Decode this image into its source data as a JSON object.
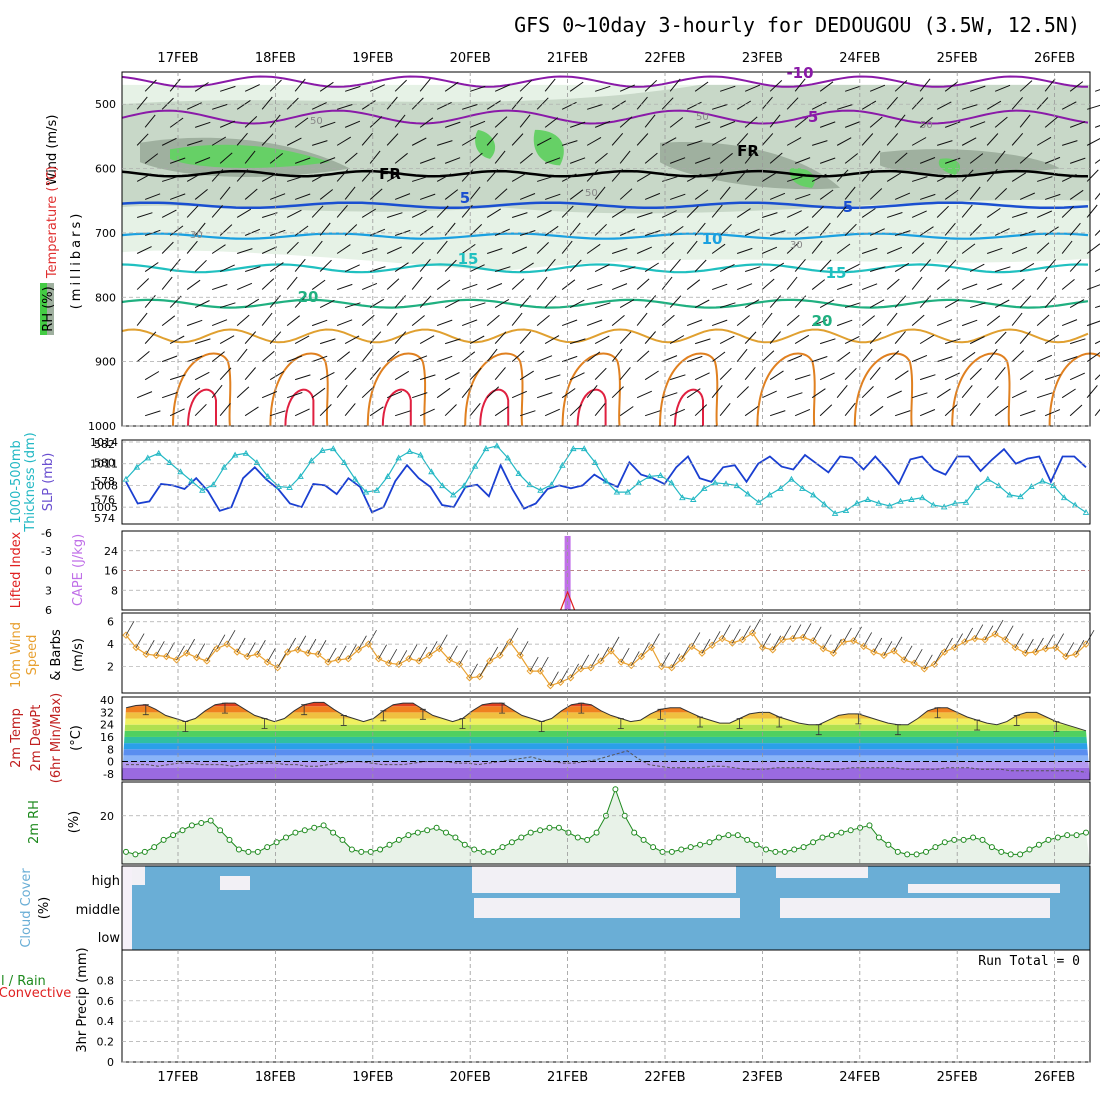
{
  "title": "GFS 0~10day 3-hourly for DEDOUGOU (3.5W, 12.5N)",
  "dates": [
    "17FEB",
    "18FEB",
    "19FEB",
    "20FEB",
    "21FEB",
    "22FEB",
    "23FEB",
    "24FEB",
    "25FEB",
    "26FEB"
  ],
  "panel_labels": {
    "p1": [
      "Wind (m/s)",
      "Temperature (°C)",
      "RH (%)",
      "(millibars)"
    ],
    "p2": [
      "1000-500mb",
      "Thickness (dm)",
      "SLP (mb)"
    ],
    "p3": [
      "Lifted Index",
      "CAPE (J/kg)"
    ],
    "p4": [
      "10m Wind",
      "Speed",
      "& Barbs",
      "(m/s)"
    ],
    "p5": [
      "2m Temp",
      "2m DewPt",
      "(6hr Min/Max)",
      "(°C)"
    ],
    "p6": [
      "2m RH",
      "(%)"
    ],
    "p7": [
      "Cloud Cover",
      "(%)"
    ],
    "p8": [
      "Total / Rain",
      "Convective",
      "3hr Precip (mm)"
    ]
  },
  "colors": {
    "slp": "#1a3fd1",
    "thickness": "#23b8c4",
    "cape": "#c070e8",
    "lifted": "#e02020",
    "wind10": "#e8a030",
    "rh2m": "#1e8a1e",
    "cloud": "#6aaed6",
    "rhfill1": "#e6f2e6",
    "rhfill2": "#c8d8c8",
    "rhfill3": "#9fb09f",
    "rhfill4": "#66d066"
  },
  "run_total": "Run Total = 0",
  "cloud_levels": [
    "high",
    "middle",
    "low"
  ],
  "chart_data": [
    {
      "type": "contour",
      "name": "upper-air",
      "ylabel": "millibars",
      "yticks": [
        500,
        600,
        700,
        800,
        900,
        1000
      ],
      "ylim": [
        1000,
        450
      ],
      "isotherm_labels": [
        "-10",
        "-5",
        "FR",
        "FR",
        "5",
        "5",
        "10",
        "15",
        "15",
        "20",
        "20"
      ],
      "rh_labels": [
        "50",
        "50",
        "50",
        "50",
        "30",
        "30"
      ]
    },
    {
      "type": "line",
      "name": "slp-thickness",
      "y_left_ticks": [
        574,
        576,
        578,
        580,
        582
      ],
      "y_right_ticks": [
        1005,
        1008,
        1011,
        1014
      ],
      "series": [
        {
          "name": "SLP (mb)",
          "axis": "right",
          "values": [
            1008.5,
            1005.5,
            1005.8,
            1008.2,
            1008.0,
            1007.5,
            1009.0,
            1007.2,
            1004.5,
            1005.0,
            1009.0,
            1010.5,
            1008.8,
            1007.5,
            1005.5,
            1005.0,
            1008.2,
            1008.0,
            1006.8,
            1009.0,
            1007.8,
            1004.3,
            1005.0,
            1008.6,
            1010.8,
            1009.0,
            1007.8,
            1005.3,
            1005.0,
            1007.8,
            1008.1,
            1006.5,
            1010.8,
            1007.5,
            1004.8,
            1005.5,
            1007.5,
            1008.0,
            1007.6,
            1008.0,
            1009.5,
            1008.5,
            1007.8,
            1011.2,
            1009.5,
            1009.0,
            1008.2,
            1010.5,
            1012.0,
            1009.0,
            1008.5,
            1010.5,
            1010.8,
            1008.5,
            1011.0,
            1012.0,
            1010.6,
            1010.2,
            1012.2,
            1011.0,
            1009.8,
            1012.0,
            1011.8,
            1010.2,
            1012.0,
            1010.2,
            1008.2,
            1011.6,
            1012.0,
            1010.2,
            1009.5,
            1012.0,
            1012.0,
            1010.0,
            1011.6,
            1013.0,
            1011.0,
            1011.7,
            1012.0,
            1008.5,
            1012.0,
            1012.0,
            1010.5
          ]
        },
        {
          "name": "1000-500mb Thickness (dm)",
          "axis": "left",
          "values": [
            578.2,
            579.5,
            580.5,
            581.0,
            580.0,
            579.0,
            578.0,
            577.0,
            577.6,
            579.5,
            580.8,
            581.0,
            580.0,
            578.5,
            577.4,
            577.3,
            578.5,
            580.2,
            581.3,
            581.5,
            580.0,
            578.2,
            576.8,
            577.0,
            578.5,
            580.5,
            581.2,
            580.8,
            579.0,
            577.5,
            576.5,
            577.5,
            579.6,
            581.5,
            581.8,
            580.5,
            578.8,
            577.6,
            577.0,
            577.6,
            579.7,
            581.5,
            581.5,
            580.0,
            578.0,
            576.8,
            576.8,
            577.8,
            578.5,
            578.6,
            577.8,
            576.2,
            576.0,
            577.2,
            577.8,
            577.7,
            577.5,
            576.6,
            575.7,
            576.5,
            577.2,
            578.2,
            577.2,
            576.5,
            575.5,
            574.5,
            574.8,
            575.6,
            576.0,
            575.6,
            575.3,
            575.8,
            576.0,
            576.2,
            575.4,
            575.2,
            575.6,
            575.7,
            577.3,
            578.2,
            577.5,
            576.5,
            576.3,
            577.4,
            578.0,
            577.5,
            576.2,
            575.4,
            574.6
          ]
        }
      ]
    },
    {
      "type": "bar",
      "name": "cape-lifted",
      "y_left_ticks": [
        "-3",
        "0",
        "3",
        "6"
      ],
      "y_right_ticks": [
        "8",
        "16",
        "24"
      ],
      "cape_spikes": [
        {
          "date": "21FEB",
          "value": 30
        }
      ],
      "dashed_line": 0
    },
    {
      "type": "line",
      "name": "10m-wind",
      "yticks": [
        2,
        4,
        6
      ],
      "ylim": [
        0,
        6
      ],
      "series": [
        {
          "name": "Speed",
          "values": [
            4.8,
            3.7,
            3.1,
            3.0,
            2.9,
            2.6,
            3.2,
            2.8,
            2.5,
            3.6,
            4.0,
            3.3,
            2.9,
            3.1,
            2.4,
            1.9,
            3.3,
            3.5,
            3.2,
            3.1,
            2.4,
            2.6,
            2.7,
            3.5,
            4.0,
            2.7,
            2.3,
            2.2,
            2.7,
            2.5,
            3.0,
            3.6,
            2.6,
            2.2,
            1.0,
            1.1,
            2.5,
            3.0,
            4.2,
            3.0,
            1.6,
            1.6,
            0.3,
            0.6,
            1.0,
            1.8,
            1.9,
            2.5,
            3.4,
            2.4,
            2.1,
            2.9,
            3.7,
            2.0,
            1.9,
            2.7,
            3.8,
            3.2,
            3.9,
            4.5,
            4.1,
            4.4,
            5.0,
            3.7,
            3.5,
            4.4,
            4.5,
            4.6,
            4.3,
            3.6,
            3.2,
            4.2,
            4.3,
            3.8,
            3.3,
            3.0,
            3.4,
            2.6,
            2.3,
            1.8,
            2.2,
            3.3,
            3.7,
            4.2,
            4.5,
            4.4,
            4.9,
            4.4,
            3.7,
            3.2,
            3.3,
            3.6,
            3.7,
            2.9,
            3.1,
            4.0
          ]
        }
      ]
    },
    {
      "type": "area",
      "name": "2m-temp",
      "yticks": [
        -8,
        0,
        8,
        16,
        24,
        32,
        40
      ],
      "ylim": [
        -12,
        42
      ],
      "series": [
        {
          "name": "2m Temp",
          "values": [
            35,
            36.5,
            37,
            34,
            30,
            28,
            26,
            28,
            33,
            37,
            38,
            38,
            34,
            30,
            28,
            26,
            28,
            33,
            37,
            38.5,
            38.5,
            34,
            30,
            28,
            26,
            28,
            33,
            37,
            38,
            38,
            34,
            30,
            28,
            26,
            28,
            33,
            37,
            38,
            38,
            34,
            30,
            28,
            26,
            28,
            33,
            37,
            38,
            37,
            33,
            30,
            28,
            26,
            27,
            31,
            34,
            35,
            35,
            32,
            29,
            27,
            25,
            25,
            28,
            31,
            32,
            32,
            29,
            27,
            25,
            24,
            24,
            27,
            30,
            31,
            31,
            29,
            27,
            25,
            24,
            24,
            28,
            33,
            35,
            35,
            32,
            29,
            27,
            25,
            24,
            26,
            30,
            32,
            32,
            29,
            26,
            24,
            22,
            20
          ]
        },
        {
          "name": "2m DewPt",
          "values": [
            -2,
            -2,
            -2,
            -3,
            -2,
            -1,
            -1,
            -2,
            -2,
            -2,
            -3,
            -2,
            -1,
            -1,
            -1,
            -2,
            -2,
            -3,
            -3,
            -2,
            -1,
            0,
            0,
            -1,
            -2,
            -2,
            -2,
            -1,
            0,
            0,
            0,
            -1,
            -1,
            -2,
            -1,
            0,
            1,
            2,
            3,
            1,
            0,
            -1,
            -1,
            0,
            1,
            3,
            5,
            7,
            2,
            -2,
            -3,
            -4,
            -4,
            -4,
            -4,
            -3,
            -3,
            -4,
            -5,
            -5,
            -5,
            -4,
            -4,
            -4,
            -4,
            -5,
            -5,
            -5,
            -4,
            -4,
            -4,
            -4,
            -4,
            -5,
            -5,
            -5,
            -5,
            -4,
            -4,
            -4,
            -5,
            -5,
            -5,
            -6,
            -6,
            -6,
            -6,
            -6,
            -6,
            -6,
            -7
          ]
        }
      ]
    },
    {
      "type": "area",
      "name": "2m-rh",
      "yticks": [
        20
      ],
      "ylim": [
        0,
        34
      ],
      "series": [
        {
          "name": "2m RH",
          "values": [
            5,
            4,
            5,
            7,
            10,
            12,
            14,
            16,
            17,
            18,
            14,
            10,
            6,
            5,
            5,
            7,
            9,
            11,
            13,
            14,
            15,
            16,
            13,
            10,
            6,
            5,
            5,
            6,
            8,
            10,
            12,
            13,
            14,
            15,
            13,
            11,
            8,
            6,
            5,
            5,
            7,
            9,
            11,
            13,
            14,
            15,
            15,
            13,
            11,
            10,
            13,
            20,
            31,
            20,
            13,
            10,
            7,
            5,
            5,
            6,
            7,
            8,
            9,
            11,
            12,
            12,
            10,
            8,
            6,
            5,
            5,
            6,
            7,
            9,
            11,
            12,
            13,
            14,
            15,
            16,
            11,
            8,
            5,
            4,
            4,
            5,
            7,
            9,
            10,
            10,
            11,
            10,
            7,
            5,
            4,
            4,
            6,
            8,
            10,
            11,
            12,
            12,
            13
          ]
        }
      ]
    },
    {
      "type": "heatmap",
      "name": "cloud-cover",
      "rows": [
        "high",
        "middle",
        "low"
      ]
    },
    {
      "type": "bar",
      "name": "precip",
      "yticks": [
        0,
        0.2,
        0.4,
        0.6,
        0.8
      ],
      "ylim": [
        0,
        1
      ],
      "values": []
    }
  ]
}
